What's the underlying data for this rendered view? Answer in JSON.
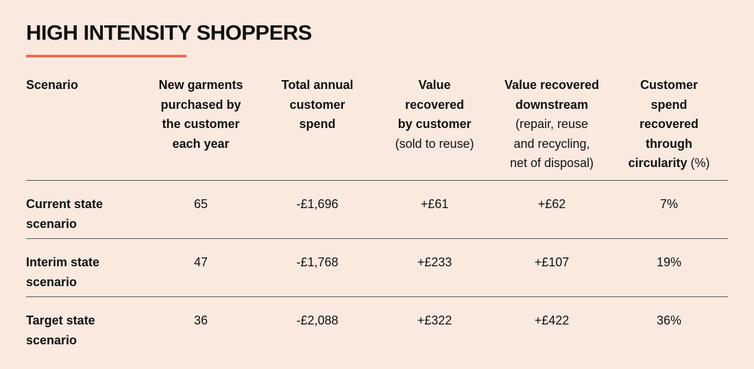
{
  "title": "HIGH INTENSITY SHOPPERS",
  "colors": {
    "background": "#fae9df",
    "accent": "#f06a55",
    "rule": "#555555",
    "text": "#111111"
  },
  "table": {
    "headers": [
      {
        "bold_lines": [
          "Scenario"
        ],
        "light_lines": []
      },
      {
        "bold_lines": [
          "New garments",
          "purchased by",
          "the customer",
          "each year"
        ],
        "light_lines": []
      },
      {
        "bold_lines": [
          "Total annual",
          "customer",
          "spend"
        ],
        "light_lines": []
      },
      {
        "bold_lines": [
          "Value",
          "recovered",
          "by customer"
        ],
        "light_lines": [
          "(sold to reuse)"
        ]
      },
      {
        "bold_lines": [
          "Value recovered",
          "downstream"
        ],
        "light_lines": [
          "(repair, reuse",
          "and recycling,",
          "net of disposal)"
        ]
      },
      {
        "bold_lines": [
          "Customer",
          "spend",
          "recovered",
          "through",
          "circularity"
        ],
        "suffix": " (%)"
      }
    ],
    "rows": [
      {
        "scenario": [
          "Current state",
          "scenario"
        ],
        "garments": "65",
        "spend": "-£1,696",
        "value_customer": "+£61",
        "value_downstream": "+£62",
        "circularity": "7%"
      },
      {
        "scenario": [
          "Interim state",
          "scenario"
        ],
        "garments": "47",
        "spend": "-£1,768",
        "value_customer": "+£233",
        "value_downstream": "+£107",
        "circularity": "19%"
      },
      {
        "scenario": [
          "Target state",
          "scenario"
        ],
        "garments": "36",
        "spend": "-£2,088",
        "value_customer": "+£322",
        "value_downstream": "+£422",
        "circularity": "36%"
      }
    ]
  }
}
